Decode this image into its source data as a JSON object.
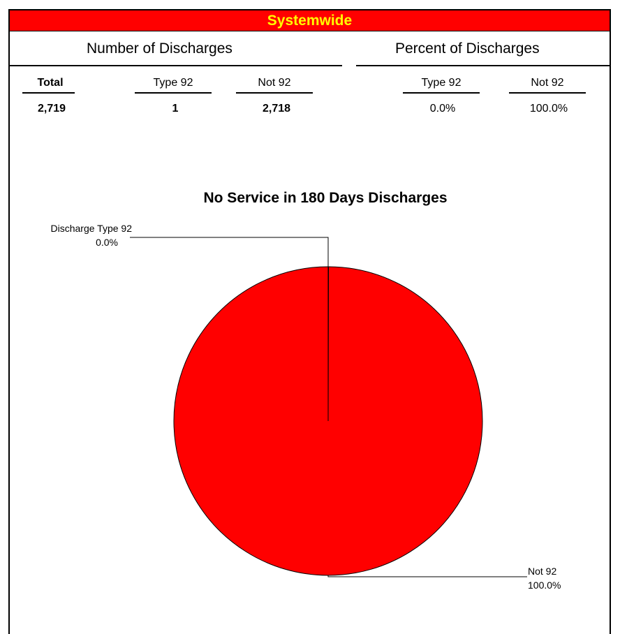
{
  "banner": {
    "title": "Systemwide",
    "bg_color": "#ff0000",
    "title_color": "#ffff00"
  },
  "table": {
    "number_group": "Number of Discharges",
    "percent_group": "Percent of Discharges",
    "headers": {
      "total": "Total",
      "num_type92": "Type 92",
      "num_not92": "Not 92",
      "pct_type92": "Type 92",
      "pct_not92": "Not 92"
    },
    "values": {
      "total": "2,719",
      "num_type92": "1",
      "num_not92": "2,718",
      "pct_type92": "0.0%",
      "pct_not92": "100.0%"
    }
  },
  "chart_data": {
    "type": "pie",
    "title": "No Service in 180 Days Discharges",
    "slices": [
      {
        "category": "Discharge Type 92",
        "value": 1,
        "label": "0.0%",
        "color": "#ff0000"
      },
      {
        "category": "Not 92",
        "value": 2718,
        "label": "100.0%",
        "color": "#ff0000"
      }
    ],
    "legend": "none"
  }
}
